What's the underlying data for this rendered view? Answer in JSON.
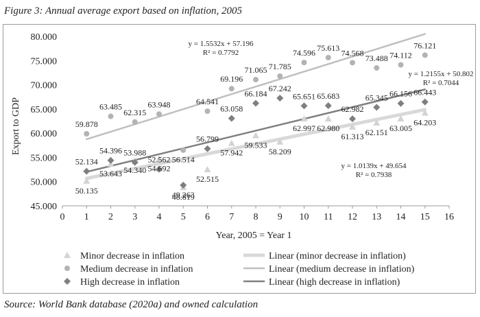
{
  "figure": {
    "title": "Figure 3: Annual average export based on inflation, 2005",
    "source": "Source: World Bank database (2020a) and owned calculation"
  },
  "chart_data": {
    "type": "scatter",
    "xlabel": "Year, 2005 =  Year 1",
    "ylabel": "Export to GDP",
    "xlim": [
      0,
      16
    ],
    "ylim": [
      45,
      80
    ],
    "x_ticks": [
      "0",
      "1",
      "2",
      "3",
      "4",
      "5",
      "6",
      "7",
      "8",
      "9",
      "10",
      "11",
      "12",
      "13",
      "14",
      "15",
      "16"
    ],
    "y_ticks": [
      "45.000",
      "50.000",
      "55.000",
      "60.000",
      "65.000",
      "70.000",
      "75.000",
      "80.000"
    ],
    "grid": false,
    "legend_position": "bottom",
    "series": [
      {
        "name": "Minor decrease in inflation",
        "marker": "triangle",
        "color": "#d3d3d3",
        "x": [
          1,
          2,
          3,
          4,
          5,
          6,
          7,
          8,
          9,
          10,
          11,
          12,
          13,
          14,
          15
        ],
        "y": [
          50.135,
          53.643,
          54.34,
          54.692,
          48.819,
          52.515,
          57.942,
          59.533,
          58.209,
          62.997,
          62.98,
          61.313,
          62.151,
          63.005,
          64.203
        ],
        "labels": [
          "50.135",
          "53.643",
          "54.340",
          "54.692",
          "48.819",
          "52.515",
          "57.942",
          "59.533",
          "58.209",
          "62.997",
          "62.980",
          "61.313",
          "62.151",
          "63.005",
          "64.203"
        ]
      },
      {
        "name": "Medium decrease in inflation",
        "marker": "circle",
        "color": "#b3b3b3",
        "x": [
          1,
          2,
          3,
          4,
          5,
          6,
          7,
          8,
          9,
          10,
          11,
          12,
          13,
          14,
          15
        ],
        "y": [
          59.878,
          63.485,
          62.315,
          63.948,
          56.514,
          64.541,
          69.196,
          71.065,
          71.785,
          74.596,
          75.613,
          74.568,
          73.488,
          74.112,
          76.121
        ],
        "labels": [
          "59.878",
          "63.485",
          "62.315",
          "63.948",
          "56.514",
          "64.541",
          "69.196",
          "71.065",
          "71.785",
          "74.596",
          "75.613",
          "74.568",
          "73.488",
          "74.112",
          "76.121"
        ]
      },
      {
        "name": "High decrease in inflation",
        "marker": "diamond",
        "color": "#7f7f7f",
        "x": [
          1,
          2,
          3,
          4,
          5,
          6,
          7,
          8,
          9,
          10,
          11,
          12,
          13,
          14,
          15
        ],
        "y": [
          52.134,
          54.396,
          53.988,
          52.562,
          49.263,
          56.799,
          63.058,
          66.184,
          67.242,
          65.651,
          65.683,
          62.982,
          65.345,
          66.156,
          66.443
        ],
        "labels": [
          "52.134",
          "54.396",
          "53.988",
          "52.562",
          "49.263",
          "56.799",
          "63.058",
          "66.184",
          "67.242",
          "65.651",
          "65.683",
          "62.982",
          "65.345",
          "66.156",
          "66.443"
        ]
      }
    ],
    "trendlines": [
      {
        "name": "Linear (minor decrease in inflation)",
        "slope": 1.0139,
        "intercept": 49.654,
        "color": "#d9d9d9",
        "width": 5,
        "equation": "y = 1.0139x + 49.654",
        "r2": "R² = 0.7938"
      },
      {
        "name": "Linear (medium decrease in inflation)",
        "slope": 1.5532,
        "intercept": 57.196,
        "color": "#bfbfbf",
        "width": 2.5,
        "equation": "y = 1.5532x + 57.196",
        "r2": "R² = 0.7792"
      },
      {
        "name": "Linear (high decrease in inflation)",
        "slope": 1.2155,
        "intercept": 50.802,
        "color": "#7f7f7f",
        "width": 2.5,
        "equation": "y = 1.2155x + 50.802",
        "r2": "R² = 0.7044"
      }
    ]
  }
}
